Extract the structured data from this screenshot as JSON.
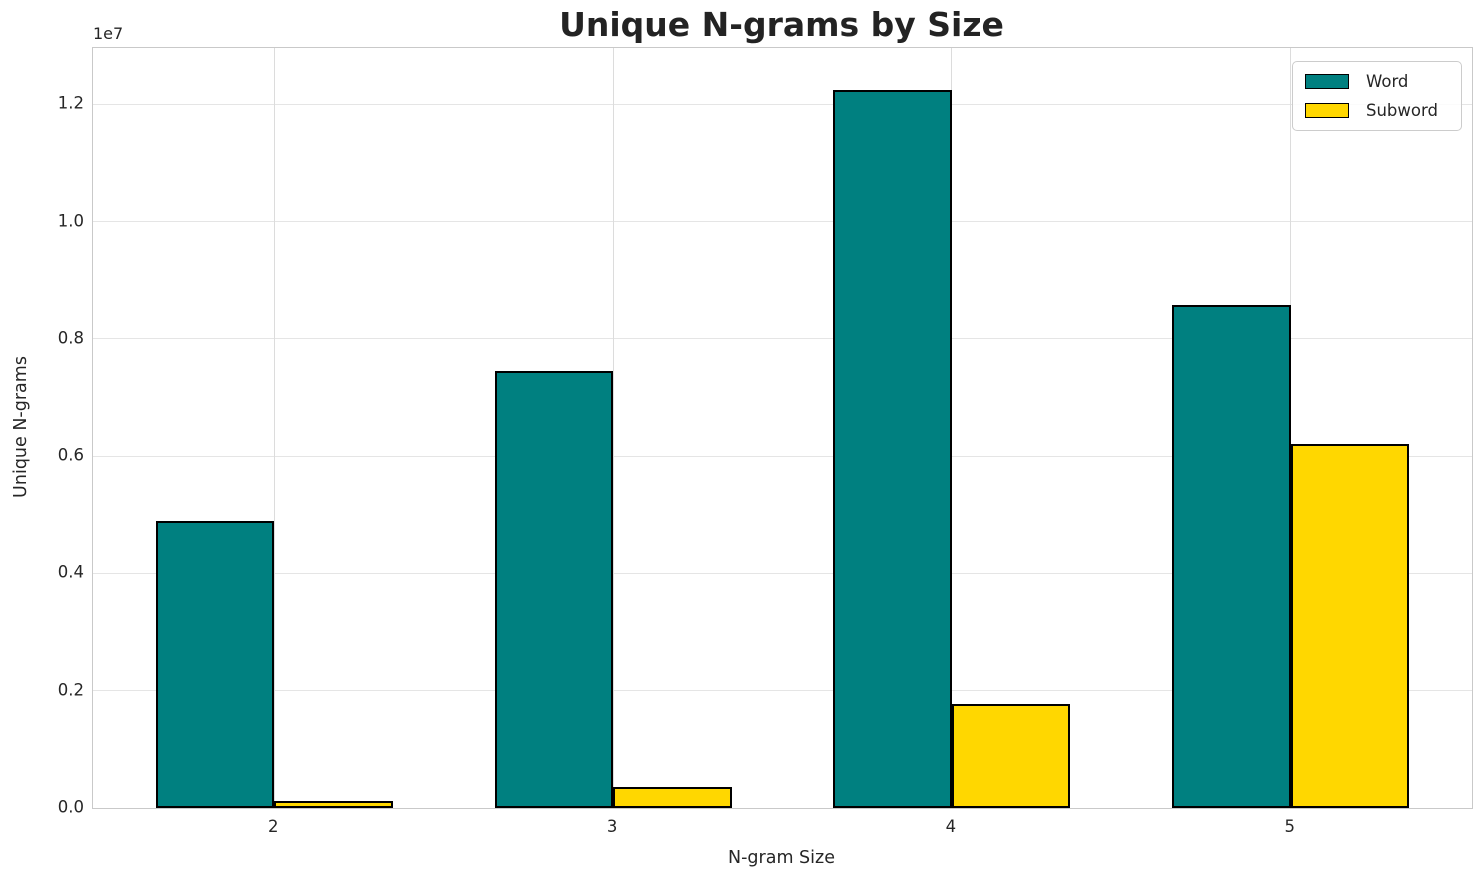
{
  "chart_data": {
    "type": "bar",
    "title": "Unique N-grams by Size",
    "xlabel": "N-gram Size",
    "ylabel": "Unique N-grams",
    "y_offset_label": "1e7",
    "categories": [
      "2",
      "3",
      "4",
      "5"
    ],
    "series": [
      {
        "name": "Word",
        "color": "#008080",
        "values": [
          4890000,
          7450000,
          12240000,
          8570000
        ]
      },
      {
        "name": "Subword",
        "color": "#FFD700",
        "values": [
          120000,
          350000,
          1770000,
          6200000
        ]
      }
    ],
    "bar_edge_color": "#000000",
    "ylim": [
      0,
      12960000
    ],
    "yticks": [
      0,
      2000000,
      4000000,
      6000000,
      8000000,
      10000000,
      12000000
    ],
    "ytick_labels": [
      "0.0",
      "0.2",
      "0.4",
      "0.6",
      "0.8",
      "1.0",
      "1.2"
    ],
    "grid": true,
    "legend": {
      "position": "upper right"
    }
  },
  "colors": {
    "background": "#ffffff",
    "text": "#262626",
    "grid_h": "#e5e5e5",
    "grid_v": "#dcdcdc",
    "spine": "#c9c9c9"
  }
}
